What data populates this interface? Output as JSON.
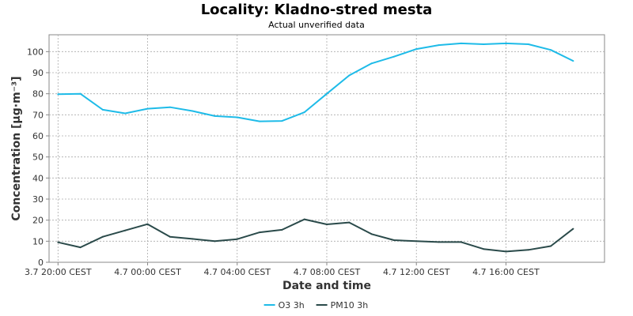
{
  "chart_data": {
    "type": "line",
    "title": "Locality: Kladno-stred mesta",
    "subtitle": "Actual unverified data",
    "xlabel": "Date and time",
    "ylabel": "Concentration [µg·m⁻³]",
    "ylim": [
      0,
      108
    ],
    "yticks": [
      0,
      10,
      20,
      30,
      40,
      50,
      60,
      70,
      80,
      90,
      100
    ],
    "xlim": [
      -0.4,
      24.4
    ],
    "xticks": [
      {
        "x": 0,
        "label": "3.7 20:00 CEST"
      },
      {
        "x": 4,
        "label": "4.7 00:00 CEST"
      },
      {
        "x": 8,
        "label": "4.7 04:00 CEST"
      },
      {
        "x": 12,
        "label": "4.7 08:00 CEST"
      },
      {
        "x": 16,
        "label": "4.7 12:00 CEST"
      },
      {
        "x": 20,
        "label": "4.7 16:00 CEST"
      }
    ],
    "grid": true,
    "legend_position": "bottom",
    "x": [
      0,
      1,
      2,
      3,
      4,
      5,
      6,
      7,
      8,
      9,
      10,
      11,
      12,
      13,
      14,
      15,
      16,
      17,
      18,
      19,
      20,
      21,
      22,
      23
    ],
    "series": [
      {
        "name": "O3 3h",
        "color": "#1ebbe8",
        "values": [
          79.8,
          80.0,
          72.4,
          70.7,
          72.9,
          73.6,
          71.8,
          69.4,
          68.8,
          66.9,
          67.1,
          71.2,
          80.0,
          88.7,
          94.4,
          97.6,
          101.2,
          103.1,
          103.9,
          103.5,
          103.9,
          103.5,
          100.8,
          95.6
        ]
      },
      {
        "name": "PM10 3h",
        "color": "#2a4a4a",
        "values": [
          9.5,
          7.1,
          12.1,
          15.1,
          18.1,
          12.1,
          11.1,
          10.0,
          11.0,
          14.2,
          15.4,
          20.4,
          18.0,
          18.9,
          13.4,
          10.5,
          10.0,
          9.6,
          9.6,
          6.3,
          5.1,
          5.9,
          7.7,
          15.9
        ]
      }
    ]
  }
}
